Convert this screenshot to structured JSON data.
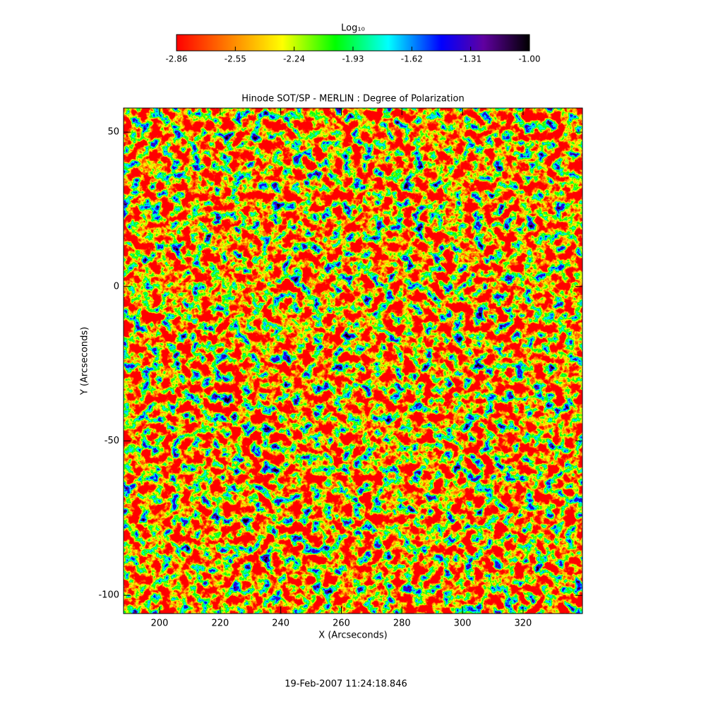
{
  "chart_data": {
    "type": "image",
    "title": "Hinode SOT/SP - MERLIN : Degree of Polarization",
    "x_label": "X (Arcseconds)",
    "y_label": "Y (Arcseconds)",
    "xlim": [
      188.1,
      339.6
    ],
    "ylim": [
      -105.9,
      57.8
    ],
    "xticks": [
      200,
      220,
      240,
      260,
      280,
      300,
      320
    ],
    "yticks": [
      50,
      0,
      -50,
      -100
    ],
    "colorbar": {
      "label": "Log₁₀",
      "clim": [
        -2.86,
        -1
      ],
      "ticks": [
        -2.86,
        -2.55,
        -2.24,
        -1.93,
        -1.62,
        -1.31,
        {
          "value": -1,
          "label": "-1.00"
        }
      ]
    },
    "timestamp": "19-Feb-2007 11:24:18.846"
  }
}
